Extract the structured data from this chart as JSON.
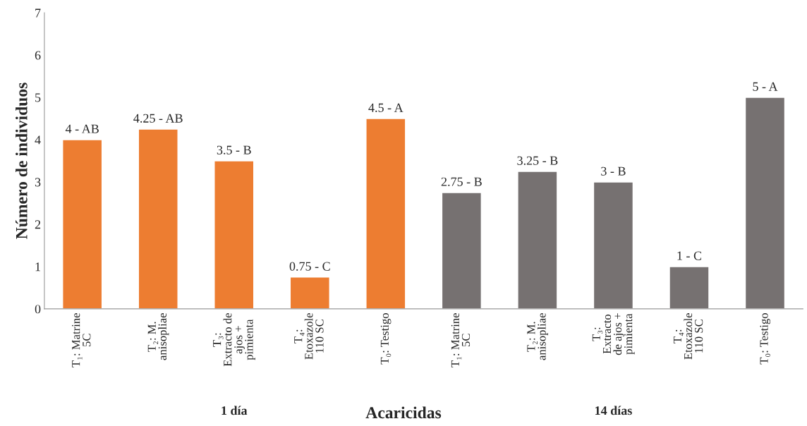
{
  "chart_data": {
    "type": "bar",
    "xlabel": "Acaricidas",
    "ylabel": "Número de individuos",
    "categories": [
      "T₁: Matrine\n5C",
      "T₂: M.\nanisopliae",
      "T₃:\nExtracto de\najos +\npimienta",
      "T₄:\nEtoxazole\n110 SC",
      "T₀: Testigo",
      "T₁: Matrine\n5C",
      "T₂: M.\nanisopliae",
      "T₃:\nExtracto\nde ajos +\npimienta",
      "T₄:\nEtoxazole\n110 SC",
      "T₀: Testigo"
    ],
    "values": [
      4,
      4.25,
      3.5,
      0.75,
      4.5,
      2.75,
      3.25,
      3,
      1,
      5
    ],
    "value_labels": [
      "4 - AB",
      "4.25 - AB",
      "3.5 - B",
      "0.75 - C",
      "4.5 - A",
      "2.75 - B",
      "3.25 - B",
      "3 - B",
      "1 - C",
      "5 - A"
    ],
    "colors": [
      "#ed7d31",
      "#ed7d31",
      "#ed7d31",
      "#ed7d31",
      "#ed7d31",
      "#767171",
      "#767171",
      "#767171",
      "#767171",
      "#767171"
    ],
    "annotations": [
      "1 día",
      "14 días"
    ],
    "ylim": [
      0,
      7
    ],
    "yticks": [
      0,
      1,
      2,
      3,
      4,
      5,
      6,
      7
    ],
    "grid": false
  }
}
